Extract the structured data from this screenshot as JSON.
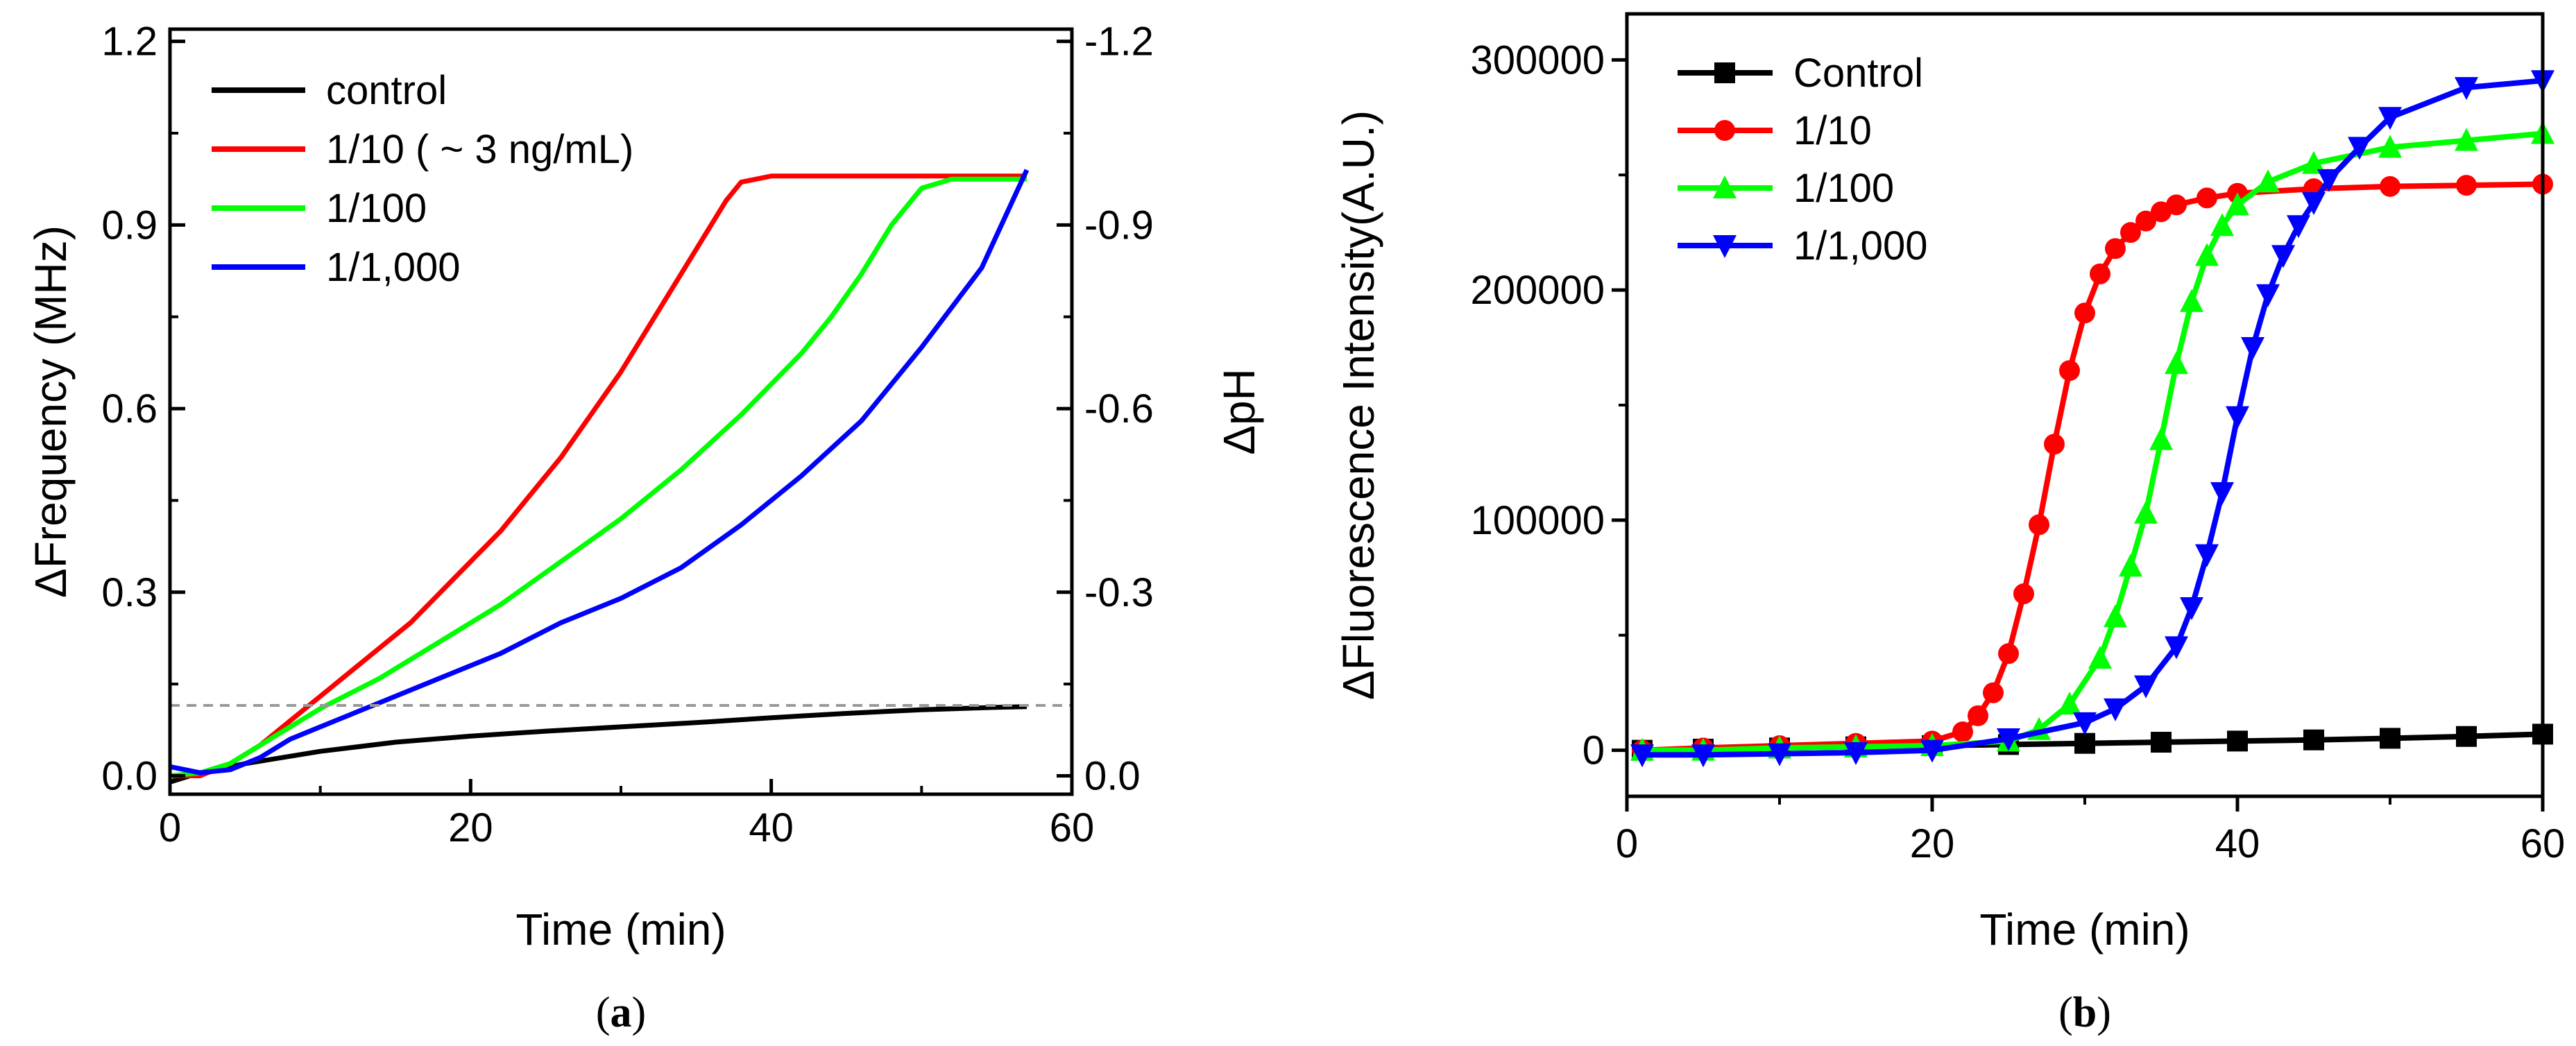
{
  "chart_data": [
    {
      "id": "a",
      "type": "line",
      "caption_letter": "a",
      "caption_open": "(",
      "caption_close": ")",
      "xlabel": "Time (min)",
      "ylabel": "ΔFrequency (MHz)",
      "y2label": "ΔpH",
      "xlim": [
        0,
        60
      ],
      "ylim": [
        -0.03,
        1.22
      ],
      "y2lim": [
        0.03,
        -1.22
      ],
      "xticks": [
        0,
        20,
        40,
        60
      ],
      "xtick_labels": [
        "0",
        "20",
        "40",
        "60"
      ],
      "yticks": [
        0.0,
        0.3,
        0.6,
        0.9,
        1.2
      ],
      "ytick_labels": [
        "0.0",
        "0.3",
        "0.6",
        "0.9",
        "1.2"
      ],
      "y2ticks": [
        0.0,
        -0.3,
        -0.6,
        -0.9,
        -1.2
      ],
      "y2tick_labels": [
        "0.0",
        "-0.3",
        "-0.6",
        "-0.9",
        "-1.2"
      ],
      "threshold": 0.115,
      "threshold_color": "#999999",
      "legend_position": "top-left",
      "series": [
        {
          "name": "control",
          "color": "#000000",
          "x": [
            0,
            2,
            5,
            10,
            15,
            20,
            25,
            30,
            35,
            40,
            45,
            50,
            55,
            57
          ],
          "y": [
            -0.01,
            0.005,
            0.02,
            0.04,
            0.055,
            0.065,
            0.073,
            0.08,
            0.087,
            0.095,
            0.102,
            0.108,
            0.112,
            0.113
          ]
        },
        {
          "name": "1/10 ( ~ 3 ng/mL)",
          "color": "#ff0000",
          "x": [
            0,
            2,
            4,
            6,
            8,
            10,
            12,
            14,
            16,
            18,
            20,
            22,
            24,
            26,
            28,
            30,
            32,
            34,
            36,
            37,
            38,
            40,
            45,
            50,
            55,
            57
          ],
          "y": [
            0.0,
            0.0,
            0.02,
            0.05,
            0.09,
            0.13,
            0.17,
            0.21,
            0.25,
            0.3,
            0.35,
            0.4,
            0.46,
            0.52,
            0.59,
            0.66,
            0.74,
            0.82,
            0.9,
            0.94,
            0.97,
            0.98,
            0.98,
            0.98,
            0.98,
            0.98
          ]
        },
        {
          "name": "1/100",
          "color": "#00ff00",
          "x": [
            0,
            2,
            4,
            6,
            8,
            10,
            14,
            18,
            22,
            26,
            30,
            34,
            38,
            42,
            44,
            46,
            48,
            50,
            52,
            55,
            57
          ],
          "y": [
            0.0,
            0.005,
            0.02,
            0.05,
            0.08,
            0.11,
            0.16,
            0.22,
            0.28,
            0.35,
            0.42,
            0.5,
            0.59,
            0.69,
            0.75,
            0.82,
            0.9,
            0.96,
            0.975,
            0.975,
            0.975
          ]
        },
        {
          "name": "1/1,000",
          "color": "#0000ff",
          "x": [
            0,
            2,
            4,
            6,
            8,
            10,
            14,
            18,
            22,
            26,
            30,
            34,
            38,
            42,
            46,
            50,
            54,
            57
          ],
          "y": [
            0.015,
            0.005,
            0.01,
            0.03,
            0.06,
            0.08,
            0.12,
            0.16,
            0.2,
            0.25,
            0.29,
            0.34,
            0.41,
            0.49,
            0.58,
            0.7,
            0.83,
            0.99
          ]
        }
      ]
    },
    {
      "id": "b",
      "type": "line",
      "caption_letter": "b",
      "caption_open": "(",
      "caption_close": ")",
      "xlabel": "Time (min)",
      "ylabel": "ΔFluorescence Intensity(A.U.)",
      "xlim": [
        0,
        60
      ],
      "ylim": [
        -20000,
        320000
      ],
      "xticks": [
        0,
        20,
        40,
        60
      ],
      "xtick_labels": [
        "0",
        "20",
        "40",
        "60"
      ],
      "yticks": [
        0,
        100000,
        200000,
        300000
      ],
      "ytick_labels": [
        "0",
        "100000",
        "200000",
        "300000"
      ],
      "legend_position": "top-left",
      "series": [
        {
          "name": "Control",
          "color": "#000000",
          "marker": "square",
          "x": [
            1,
            5,
            10,
            15,
            20,
            25,
            30,
            35,
            40,
            45,
            50,
            55,
            60
          ],
          "y": [
            0,
            500,
            1000,
            1500,
            2000,
            2500,
            3000,
            3500,
            4000,
            4500,
            5200,
            6000,
            7000
          ]
        },
        {
          "name": "1/10",
          "color": "#ff0000",
          "marker": "circle",
          "x": [
            1,
            5,
            10,
            15,
            20,
            22,
            23,
            24,
            25,
            26,
            27,
            28,
            29,
            30,
            31,
            32,
            33,
            34,
            35,
            36,
            38,
            40,
            45,
            50,
            55,
            60
          ],
          "y": [
            0,
            1000,
            2000,
            3000,
            4000,
            8000,
            15000,
            25000,
            42000,
            68000,
            98000,
            133000,
            165000,
            190000,
            207000,
            218000,
            225000,
            230000,
            234000,
            237000,
            240000,
            242000,
            244000,
            245000,
            245500,
            246000
          ]
        },
        {
          "name": "1/100",
          "color": "#00ff00",
          "marker": "triangle-up",
          "x": [
            1,
            5,
            10,
            15,
            20,
            25,
            27,
            29,
            31,
            32,
            33,
            34,
            35,
            36,
            37,
            38,
            39,
            40,
            42,
            45,
            50,
            55,
            60
          ],
          "y": [
            0,
            0,
            1000,
            1500,
            2000,
            4000,
            9000,
            20000,
            40000,
            58000,
            80000,
            103000,
            135000,
            168000,
            195000,
            215000,
            228000,
            237000,
            247000,
            255000,
            262000,
            265000,
            268000
          ]
        },
        {
          "name": "1/1,000",
          "color": "#0000ff",
          "marker": "triangle-down",
          "x": [
            1,
            5,
            10,
            15,
            20,
            25,
            30,
            32,
            34,
            36,
            37,
            38,
            39,
            40,
            41,
            42,
            43,
            44,
            45,
            46,
            48,
            50,
            55,
            60
          ],
          "y": [
            -2000,
            -2000,
            -1500,
            -1000,
            0,
            5000,
            12000,
            18000,
            28000,
            45000,
            62000,
            85000,
            112000,
            145000,
            175000,
            198000,
            215000,
            228000,
            238000,
            248000,
            262000,
            275000,
            288000,
            291000
          ]
        }
      ]
    }
  ]
}
